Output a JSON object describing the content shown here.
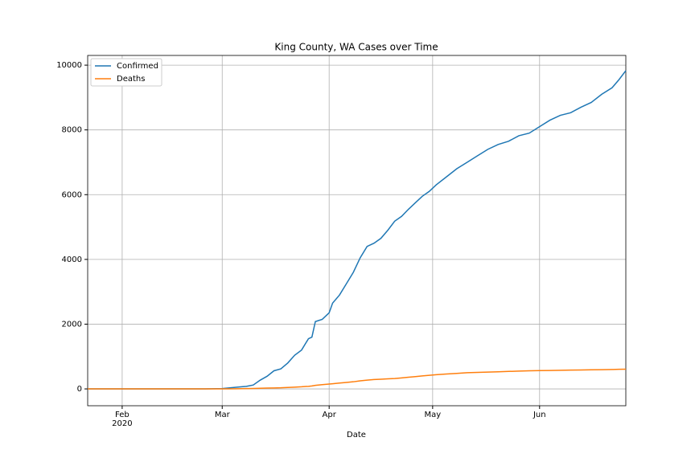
{
  "chart_data": {
    "type": "line",
    "title": "King County, WA Cases over Time",
    "x_label": "Date",
    "x": [
      21,
      31,
      45,
      55,
      60,
      64,
      67,
      69,
      71,
      73,
      75,
      77,
      79,
      81,
      83,
      85,
      86,
      87,
      89,
      91,
      92,
      94,
      96,
      98,
      100,
      102,
      104,
      106,
      108,
      110,
      112,
      114,
      116,
      118,
      120,
      122,
      125,
      128,
      131,
      134,
      137,
      140,
      143,
      146,
      149,
      152,
      155,
      158,
      161,
      164,
      167,
      170,
      173,
      175,
      177
    ],
    "series": [
      {
        "name": "Confirmed",
        "color": "#1f77b4",
        "values": [
          0,
          0,
          0,
          0,
          10,
          50,
          80,
          120,
          270,
          390,
          560,
          620,
          800,
          1040,
          1200,
          1550,
          1600,
          2080,
          2150,
          2350,
          2650,
          2900,
          3250,
          3600,
          4050,
          4400,
          4500,
          4650,
          4900,
          5180,
          5330,
          5550,
          5750,
          5950,
          6100,
          6300,
          6550,
          6800,
          7000,
          7200,
          7400,
          7550,
          7650,
          7820,
          7900,
          8100,
          8300,
          8450,
          8530,
          8700,
          8850,
          9100,
          9300,
          9550,
          9830
        ]
      },
      {
        "name": "Deaths",
        "color": "#ff7f0e",
        "values": [
          0,
          0,
          0,
          0,
          2,
          5,
          10,
          15,
          20,
          25,
          30,
          35,
          45,
          55,
          65,
          80,
          90,
          110,
          130,
          150,
          160,
          180,
          200,
          220,
          250,
          270,
          290,
          300,
          310,
          320,
          340,
          360,
          380,
          400,
          420,
          440,
          460,
          480,
          500,
          510,
          520,
          530,
          540,
          550,
          560,
          565,
          570,
          575,
          580,
          585,
          590,
          595,
          600,
          605,
          610
        ]
      }
    ],
    "xlim": [
      21,
      177
    ],
    "xticks": [
      {
        "value": 31,
        "label": "Feb"
      },
      {
        "value": 60,
        "label": "Mar"
      },
      {
        "value": 91,
        "label": "Apr"
      },
      {
        "value": 121,
        "label": "May"
      },
      {
        "value": 152,
        "label": "Jun"
      }
    ],
    "x_year_label": "2020",
    "ylim": [
      -520,
      10300
    ],
    "yticks": [
      0,
      2000,
      4000,
      6000,
      8000,
      10000
    ],
    "grid": true,
    "legend": "upper-left"
  }
}
